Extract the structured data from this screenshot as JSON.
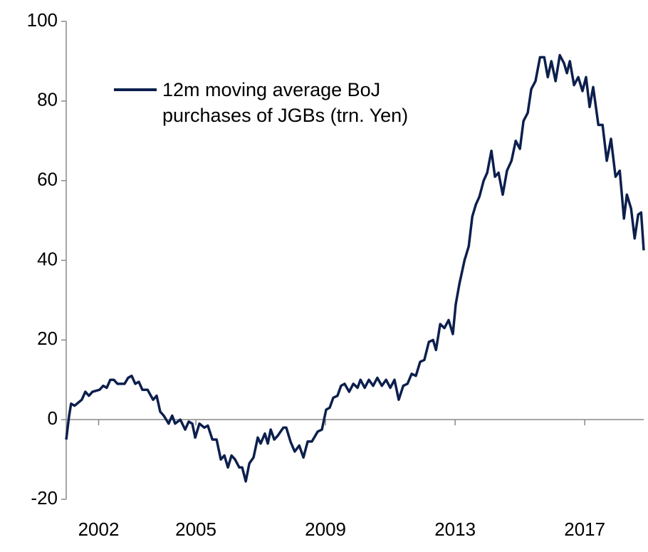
{
  "chart_data": {
    "type": "line",
    "x": [
      2001.0,
      2001.09,
      2001.15,
      2001.26,
      2001.48,
      2001.59,
      2001.7,
      2001.81,
      2002.03,
      2002.14,
      2002.25,
      2002.36,
      2002.47,
      2002.58,
      2002.8,
      2002.91,
      2003.02,
      2003.13,
      2003.24,
      2003.35,
      2003.51,
      2003.68,
      2003.79,
      2003.9,
      2004.01,
      2004.16,
      2004.27,
      2004.36,
      2004.52,
      2004.67,
      2004.78,
      2004.89,
      2004.98,
      2005.11,
      2005.26,
      2005.37,
      2005.51,
      2005.64,
      2005.77,
      2005.88,
      2005.99,
      2006.1,
      2006.21,
      2006.34,
      2006.43,
      2006.54,
      2006.65,
      2006.78,
      2006.91,
      2007.0,
      2007.13,
      2007.22,
      2007.31,
      2007.42,
      2007.53,
      2007.7,
      2007.79,
      2007.92,
      2008.05,
      2008.19,
      2008.32,
      2008.45,
      2008.58,
      2008.76,
      2008.89,
      2009.02,
      2009.13,
      2009.24,
      2009.37,
      2009.48,
      2009.59,
      2009.73,
      2009.86,
      2009.99,
      2010.08,
      2010.21,
      2010.34,
      2010.47,
      2010.6,
      2010.74,
      2010.87,
      2011.0,
      2011.13,
      2011.26,
      2011.4,
      2011.53,
      2011.66,
      2011.79,
      2011.92,
      2012.05,
      2012.19,
      2012.32,
      2012.41,
      2012.54,
      2012.67,
      2012.8,
      2012.93,
      2013.02,
      2013.13,
      2013.29,
      2013.42,
      2013.53,
      2013.64,
      2013.75,
      2013.88,
      2013.99,
      2014.12,
      2014.23,
      2014.34,
      2014.47,
      2014.6,
      2014.74,
      2014.87,
      2015.0,
      2015.11,
      2015.24,
      2015.35,
      2015.48,
      2015.62,
      2015.75,
      2015.86,
      2015.97,
      2016.1,
      2016.23,
      2016.36,
      2016.45,
      2016.54,
      2016.67,
      2016.8,
      2016.93,
      2017.04,
      2017.15,
      2017.26,
      2017.42,
      2017.55,
      2017.68,
      2017.81,
      2017.95,
      2018.08,
      2018.21,
      2018.3,
      2018.43,
      2018.54,
      2018.65,
      2018.74,
      2018.82
    ],
    "series": [
      {
        "name": "12m moving average BoJ purchases of JGBs (trn. Yen)",
        "color": "#0c1f4d",
        "values": [
          -5,
          1,
          4,
          3.5,
          5,
          7,
          6,
          7,
          7.5,
          8.5,
          8,
          10,
          10,
          9,
          9,
          10.5,
          11,
          9,
          9.5,
          7.5,
          7.5,
          5,
          6,
          2,
          1,
          -1,
          1,
          -1,
          0,
          -2.5,
          -0.5,
          -1,
          -4.5,
          -1,
          -2,
          -1.5,
          -5,
          -5,
          -10,
          -9,
          -12,
          -9,
          -10,
          -12,
          -12,
          -15.5,
          -11,
          -9.5,
          -4.5,
          -6,
          -3.5,
          -6,
          -2.5,
          -5,
          -4,
          -2,
          -2,
          -5.5,
          -8,
          -6.5,
          -9.5,
          -5.5,
          -5.5,
          -3,
          -2.5,
          2.5,
          3,
          5.5,
          6,
          8.5,
          9,
          7,
          9,
          8,
          10,
          8,
          10,
          8.5,
          10.5,
          8.5,
          10,
          8,
          10,
          5,
          8.5,
          9,
          11.5,
          11,
          14.5,
          15,
          19.5,
          20,
          17.5,
          24,
          23,
          25,
          21.5,
          29,
          34,
          40,
          43.5,
          51,
          54,
          56,
          60,
          62,
          67.5,
          61,
          62,
          56.5,
          62.5,
          65,
          70,
          68,
          75,
          77,
          83,
          85,
          91,
          91,
          86,
          90,
          85,
          91.5,
          89.5,
          87,
          90,
          84,
          86,
          82.5,
          86,
          78.5,
          83.5,
          74,
          74,
          65,
          70.5,
          61,
          62.5,
          50.5,
          56.5,
          53,
          45.5,
          51.5,
          52,
          42.5
        ]
      }
    ],
    "xlim": [
      2001,
      2018.82
    ],
    "xticks": [
      2002,
      2005,
      2009,
      2013,
      2017
    ],
    "ylim": [
      -20,
      100
    ],
    "yticks": [
      -20,
      0,
      20,
      40,
      60,
      80,
      100
    ],
    "grid": false,
    "legend": "upper left"
  }
}
